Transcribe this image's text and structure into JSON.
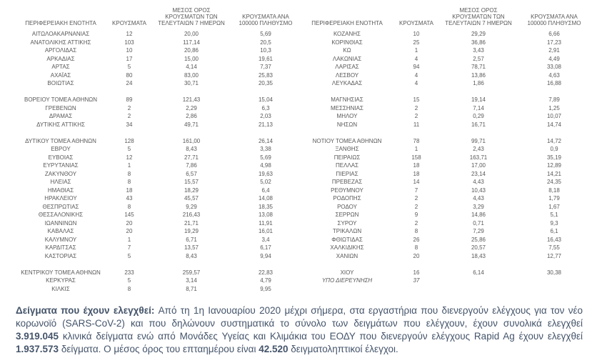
{
  "table": {
    "headers": {
      "region": "ΠΕΡΙΦΕΡΕΙΑΚΗ ΕΝΟΤΗΤΑ",
      "cases": "ΚΡΟΥΣΜΑΤΑ",
      "avg7_lines": [
        "ΜΕΣΟΣ ΟΡΟΣ",
        "ΚΡΟΥΣΜΑΤΩΝ ΤΩΝ",
        "ΤΕΛΕΥΤΑΙΩΝ 7 ΗΜΕΡΩΝ"
      ],
      "per100k_lines": [
        "ΚΡΟΥΣΜΑΤΑ ΑΝΑ",
        "100000 ΠΛΗΘΥΣΜΟ"
      ]
    },
    "rows": [
      {
        "l": [
          "ΑΙΤΩΛΟΑΚΑΡΝΑΝΙΑΣ",
          "12",
          "20,00",
          "5,69"
        ],
        "r": [
          "ΚΟΖΑΝΗΣ",
          "10",
          "29,29",
          "6,66"
        ]
      },
      {
        "l": [
          "ΑΝΑΤΟΛΙΚΗΣ ΑΤΤΙΚΗΣ",
          "103",
          "117,14",
          "20,5"
        ],
        "r": [
          "ΚΟΡΙΝΘΙΑΣ",
          "25",
          "36,86",
          "17,23"
        ]
      },
      {
        "l": [
          "ΑΡΓΟΛΙΔΑΣ",
          "10",
          "20,86",
          "10,3"
        ],
        "r": [
          "ΚΩ",
          "1",
          "3,43",
          "2,91"
        ]
      },
      {
        "l": [
          "ΑΡΚΑΔΙΑΣ",
          "17",
          "15,00",
          "19,61"
        ],
        "r": [
          "ΛΑΚΩΝΙΑΣ",
          "4",
          "2,57",
          "4,49"
        ]
      },
      {
        "l": [
          "ΑΡΤΑΣ",
          "5",
          "4,14",
          "7,37"
        ],
        "r": [
          "ΛΑΡΙΣΑΣ",
          "94",
          "78,71",
          "33,08"
        ]
      },
      {
        "l": [
          "ΑΧΑΪΑΣ",
          "80",
          "83,00",
          "25,83"
        ],
        "r": [
          "ΛΕΣΒΟΥ",
          "4",
          "13,86",
          "4,63"
        ]
      },
      {
        "l": [
          "ΒΟΙΩΤΙΑΣ",
          "24",
          "30,71",
          "20,35"
        ],
        "r": [
          "ΛΕΥΚΑΔΑΣ",
          "4",
          "1,86",
          "16,88"
        ]
      },
      {
        "blank": true
      },
      {
        "l": [
          "ΒΟΡΕΙΟΥ ΤΟΜΕΑ ΑΘΗΝΩΝ",
          "89",
          "121,43",
          "15,04"
        ],
        "r": [
          "ΜΑΓΝΗΣΙΑΣ",
          "15",
          "19,14",
          "7,89"
        ]
      },
      {
        "l": [
          "ΓΡΕΒΕΝΩΝ",
          "2",
          "2,29",
          "6,3"
        ],
        "r": [
          "ΜΕΣΣΗΝΙΑΣ",
          "2",
          "7,14",
          "1,25"
        ]
      },
      {
        "l": [
          "ΔΡΑΜΑΣ",
          "2",
          "2,86",
          "2,03"
        ],
        "r": [
          "ΜΗΛΟΥ",
          "2",
          "0,29",
          "10,07"
        ]
      },
      {
        "l": [
          "ΔΥΤΙΚΗΣ ΑΤΤΙΚΗΣ",
          "34",
          "49,71",
          "21,13"
        ],
        "r": [
          "ΝΗΣΩΝ",
          "11",
          "16,71",
          "14,74"
        ]
      },
      {
        "blank": true
      },
      {
        "l": [
          "ΔΥΤΙΚΟΥ ΤΟΜΕΑ ΑΘΗΝΩΝ",
          "128",
          "161,00",
          "26,14"
        ],
        "r": [
          "ΝΟΤΙΟΥ ΤΟΜΕΑ ΑΘΗΝΩΝ",
          "78",
          "99,71",
          "14,72"
        ]
      },
      {
        "l": [
          "ΕΒΡΟΥ",
          "5",
          "8,43",
          "3,38"
        ],
        "r": [
          "ΞΑΝΘΗΣ",
          "1",
          "2,43",
          "0,9"
        ]
      },
      {
        "l": [
          "ΕΥΒΟΙΑΣ",
          "12",
          "27,71",
          "5,69"
        ],
        "r": [
          "ΠΕΙΡΑΙΩΣ",
          "158",
          "163,71",
          "35,19"
        ]
      },
      {
        "l": [
          "ΕΥΡΥΤΑΝΙΑΣ",
          "1",
          "7,86",
          "4,98"
        ],
        "r": [
          "ΠΕΛΛΑΣ",
          "18",
          "17,00",
          "12,89"
        ]
      },
      {
        "l": [
          "ΖΑΚΥΝΘΟΥ",
          "8",
          "6,57",
          "19,63"
        ],
        "r": [
          "ΠΙΕΡΙΑΣ",
          "18",
          "23,14",
          "14,21"
        ]
      },
      {
        "l": [
          "ΗΛΕΙΑΣ",
          "8",
          "15,57",
          "5,02"
        ],
        "r": [
          "ΠΡΕΒΕΖΑΣ",
          "14",
          "4,43",
          "24,35"
        ]
      },
      {
        "l": [
          "ΗΜΑΘΙΑΣ",
          "18",
          "18,29",
          "6,4"
        ],
        "r": [
          "ΡΕΘΥΜΝΟΥ",
          "7",
          "10,43",
          "8,18"
        ]
      },
      {
        "l": [
          "ΗΡΑΚΛΕΙΟΥ",
          "43",
          "45,57",
          "14,08"
        ],
        "r": [
          "ΡΟΔΟΠΗΣ",
          "2",
          "4,43",
          "1,79"
        ]
      },
      {
        "l": [
          "ΘΕΣΠΡΩΤΙΑΣ",
          "8",
          "9,29",
          "18,35"
        ],
        "r": [
          "ΡΟΔΟΥ",
          "2",
          "3,29",
          "1,67"
        ]
      },
      {
        "l": [
          "ΘΕΣΣΑΛΟΝΙΚΗΣ",
          "145",
          "216,43",
          "13,08"
        ],
        "r": [
          "ΣΕΡΡΩΝ",
          "9",
          "14,86",
          "5,1"
        ]
      },
      {
        "l": [
          "ΙΩΑΝΝΙΝΩΝ",
          "20",
          "21,71",
          "11,91"
        ],
        "r": [
          "ΣΥΡΟΥ",
          "2",
          "0,71",
          "9,3"
        ]
      },
      {
        "l": [
          "ΚΑΒΑΛΑΣ",
          "20",
          "19,29",
          "16,01"
        ],
        "r": [
          "ΤΡΙΚΑΛΩΝ",
          "8",
          "7,29",
          "6,1"
        ]
      },
      {
        "l": [
          "ΚΑΛΥΜΝΟΥ",
          "1",
          "6,71",
          "3,4"
        ],
        "r": [
          "ΦΘΙΩΤΙΔΑΣ",
          "26",
          "25,86",
          "16,43"
        ]
      },
      {
        "l": [
          "ΚΑΡΔΙΤΣΑΣ",
          "7",
          "13,57",
          "6,17"
        ],
        "r": [
          "ΧΑΛΚΙΔΙΚΗΣ",
          "8",
          "20,57",
          "7,55"
        ]
      },
      {
        "l": [
          "ΚΑΣΤΟΡΙΑΣ",
          "5",
          "8,43",
          "9,94"
        ],
        "r": [
          "ΧΑΝΙΩΝ",
          "20",
          "18,43",
          "12,77"
        ]
      },
      {
        "blank": true
      },
      {
        "l": [
          "ΚΕΝΤΡΙΚΟΥ ΤΟΜΕΑ ΑΘΗΝΩΝ",
          "233",
          "259,57",
          "22,83"
        ],
        "r": [
          "ΧΙΟΥ",
          "16",
          "6,14",
          "30,38"
        ]
      },
      {
        "l": [
          "ΚΕΡΚΥΡΑΣ",
          "5",
          "3,14",
          "4,79"
        ],
        "r": [
          "ΥΠΟ ΔΙΕΡΕΥΝΗΣΗ",
          "37",
          "",
          ""
        ],
        "r_italic": true
      },
      {
        "l": [
          "ΚΙΛΚΙΣ",
          "8",
          "8,71",
          "9,95"
        ],
        "r": null
      }
    ]
  },
  "paragraph": {
    "segments": [
      {
        "text": "Δείγματα που έχουν ελεγχθεί: ",
        "bold": true
      },
      {
        "text": "Από τη 1η Ιανουαρίου 2020 μέχρι σήμερα, στα εργαστήρια που διενεργούν ελέγχους για τον νέο κορωνοϊό (SARS-CoV-2) και που δηλώνουν συστηματικά το σύνολο των δειγμάτων που ελέγχουν, έχουν συνολικά ελεγχθεί ",
        "bold": false
      },
      {
        "text": "3.919.045",
        "bold": true
      },
      {
        "text": " κλινικά δείγματα ενώ από Μονάδες Υγείας και Κλιμάκια του ΕΟΔΥ που διενεργούν ελέγχους Rapid Ag έχουν ελεγχθεί ",
        "bold": false
      },
      {
        "text": "1.937.573",
        "bold": true
      },
      {
        "text": " δείγματα. Ο μέσος όρος του επταημέρου είναι ",
        "bold": false
      },
      {
        "text": "42.520",
        "bold": true
      },
      {
        "text": " δειγματοληπτικοί έλεγχοι.",
        "bold": false
      }
    ]
  },
  "colors": {
    "table_text": "#595959",
    "paragraph_text": "#44546a",
    "background": "#ffffff"
  }
}
